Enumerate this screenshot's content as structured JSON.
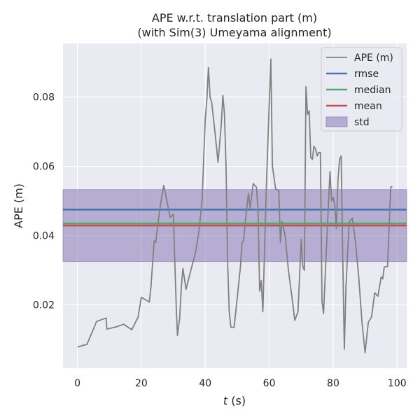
{
  "chart_data": {
    "type": "line",
    "title": "APE w.r.t. translation part (m)",
    "subtitle": "(with Sim(3) Umeyama alignment)",
    "xlabel_var": "t",
    "xlabel_unit": "(s)",
    "ylabel": "APE (m)",
    "xlim": [
      -4.5,
      103
    ],
    "ylim": [
      0.0017,
      0.0955
    ],
    "xticks": [
      0,
      20,
      40,
      60,
      80,
      100
    ],
    "yticks": [
      0.02,
      0.04,
      0.06,
      0.08
    ],
    "ytick_labels": [
      "0.02",
      "0.04",
      "0.06",
      "0.08"
    ],
    "grid": true,
    "legend_position": "top-right",
    "legend": [
      {
        "label": "APE (m)",
        "kind": "line",
        "color": "#808080"
      },
      {
        "label": "rmse",
        "kind": "line",
        "color": "#4c72b0"
      },
      {
        "label": "median",
        "kind": "line",
        "color": "#55a868"
      },
      {
        "label": "mean",
        "kind": "line",
        "color": "#c44e52"
      },
      {
        "label": "std",
        "kind": "band",
        "color": "#8172b2"
      }
    ],
    "stats": {
      "rmse": 0.0475,
      "median": 0.0435,
      "mean": 0.0429,
      "std_band": [
        0.0325,
        0.0533
      ]
    },
    "series": [
      {
        "name": "APE (m)",
        "color": "#808080",
        "x": [
          0,
          3,
          6,
          9,
          9.2,
          12,
          14.5,
          17,
          19,
          20,
          22.5,
          23,
          24,
          24.5,
          25,
          26,
          27,
          28,
          29,
          30,
          31,
          31.3,
          32,
          32.5,
          33,
          34,
          35,
          36,
          37,
          38,
          39,
          40,
          40.5,
          41,
          41.5,
          42,
          43,
          44,
          45,
          45.5,
          46,
          46.5,
          47,
          47.5,
          48,
          49,
          50,
          51,
          51.5,
          52,
          52.5,
          53,
          53.5,
          54,
          55,
          56,
          56.5,
          57,
          57.5,
          58,
          59,
          60,
          60.5,
          61,
          62,
          63,
          63.5,
          64,
          64.5,
          65,
          66,
          67,
          68,
          69,
          70,
          70.5,
          71,
          71.5,
          72,
          72.5,
          73,
          73.5,
          74,
          74.5,
          75,
          75.5,
          76,
          76.5,
          77,
          78,
          79,
          79.5,
          80,
          80.5,
          81,
          81.5,
          82,
          82.5,
          83,
          83.5,
          84,
          85,
          86,
          87,
          88,
          89,
          90,
          91,
          92,
          93,
          94,
          95,
          95.5,
          96,
          97,
          98,
          98.5
        ],
        "y": [
          0.0078,
          0.0086,
          0.0152,
          0.0162,
          0.013,
          0.0136,
          0.0144,
          0.0128,
          0.0165,
          0.0222,
          0.0208,
          0.025,
          0.0385,
          0.038,
          0.042,
          0.049,
          0.0545,
          0.05,
          0.0452,
          0.0462,
          0.0175,
          0.0112,
          0.0162,
          0.025,
          0.0305,
          0.0245,
          0.0282,
          0.0318,
          0.0352,
          0.0412,
          0.0502,
          0.0738,
          0.0792,
          0.0885,
          0.08,
          0.0785,
          0.07,
          0.0612,
          0.072,
          0.0805,
          0.075,
          0.06,
          0.032,
          0.018,
          0.0135,
          0.0135,
          0.022,
          0.031,
          0.038,
          0.0385,
          0.044,
          0.048,
          0.0522,
          0.048,
          0.055,
          0.054,
          0.048,
          0.024,
          0.027,
          0.018,
          0.051,
          0.078,
          0.091,
          0.06,
          0.0535,
          0.053,
          0.038,
          0.044,
          0.042,
          0.04,
          0.03,
          0.023,
          0.0155,
          0.018,
          0.039,
          0.031,
          0.03,
          0.083,
          0.075,
          0.076,
          0.0625,
          0.062,
          0.0658,
          0.065,
          0.063,
          0.064,
          0.064,
          0.021,
          0.0175,
          0.0385,
          0.0585,
          0.05,
          0.051,
          0.049,
          0.042,
          0.056,
          0.062,
          0.063,
          0.033,
          0.0072,
          0.025,
          0.044,
          0.045,
          0.038,
          0.028,
          0.015,
          0.0062,
          0.015,
          0.0165,
          0.0235,
          0.0225,
          0.028,
          0.0275,
          0.031,
          0.031,
          0.054,
          0.0542
        ]
      }
    ]
  }
}
